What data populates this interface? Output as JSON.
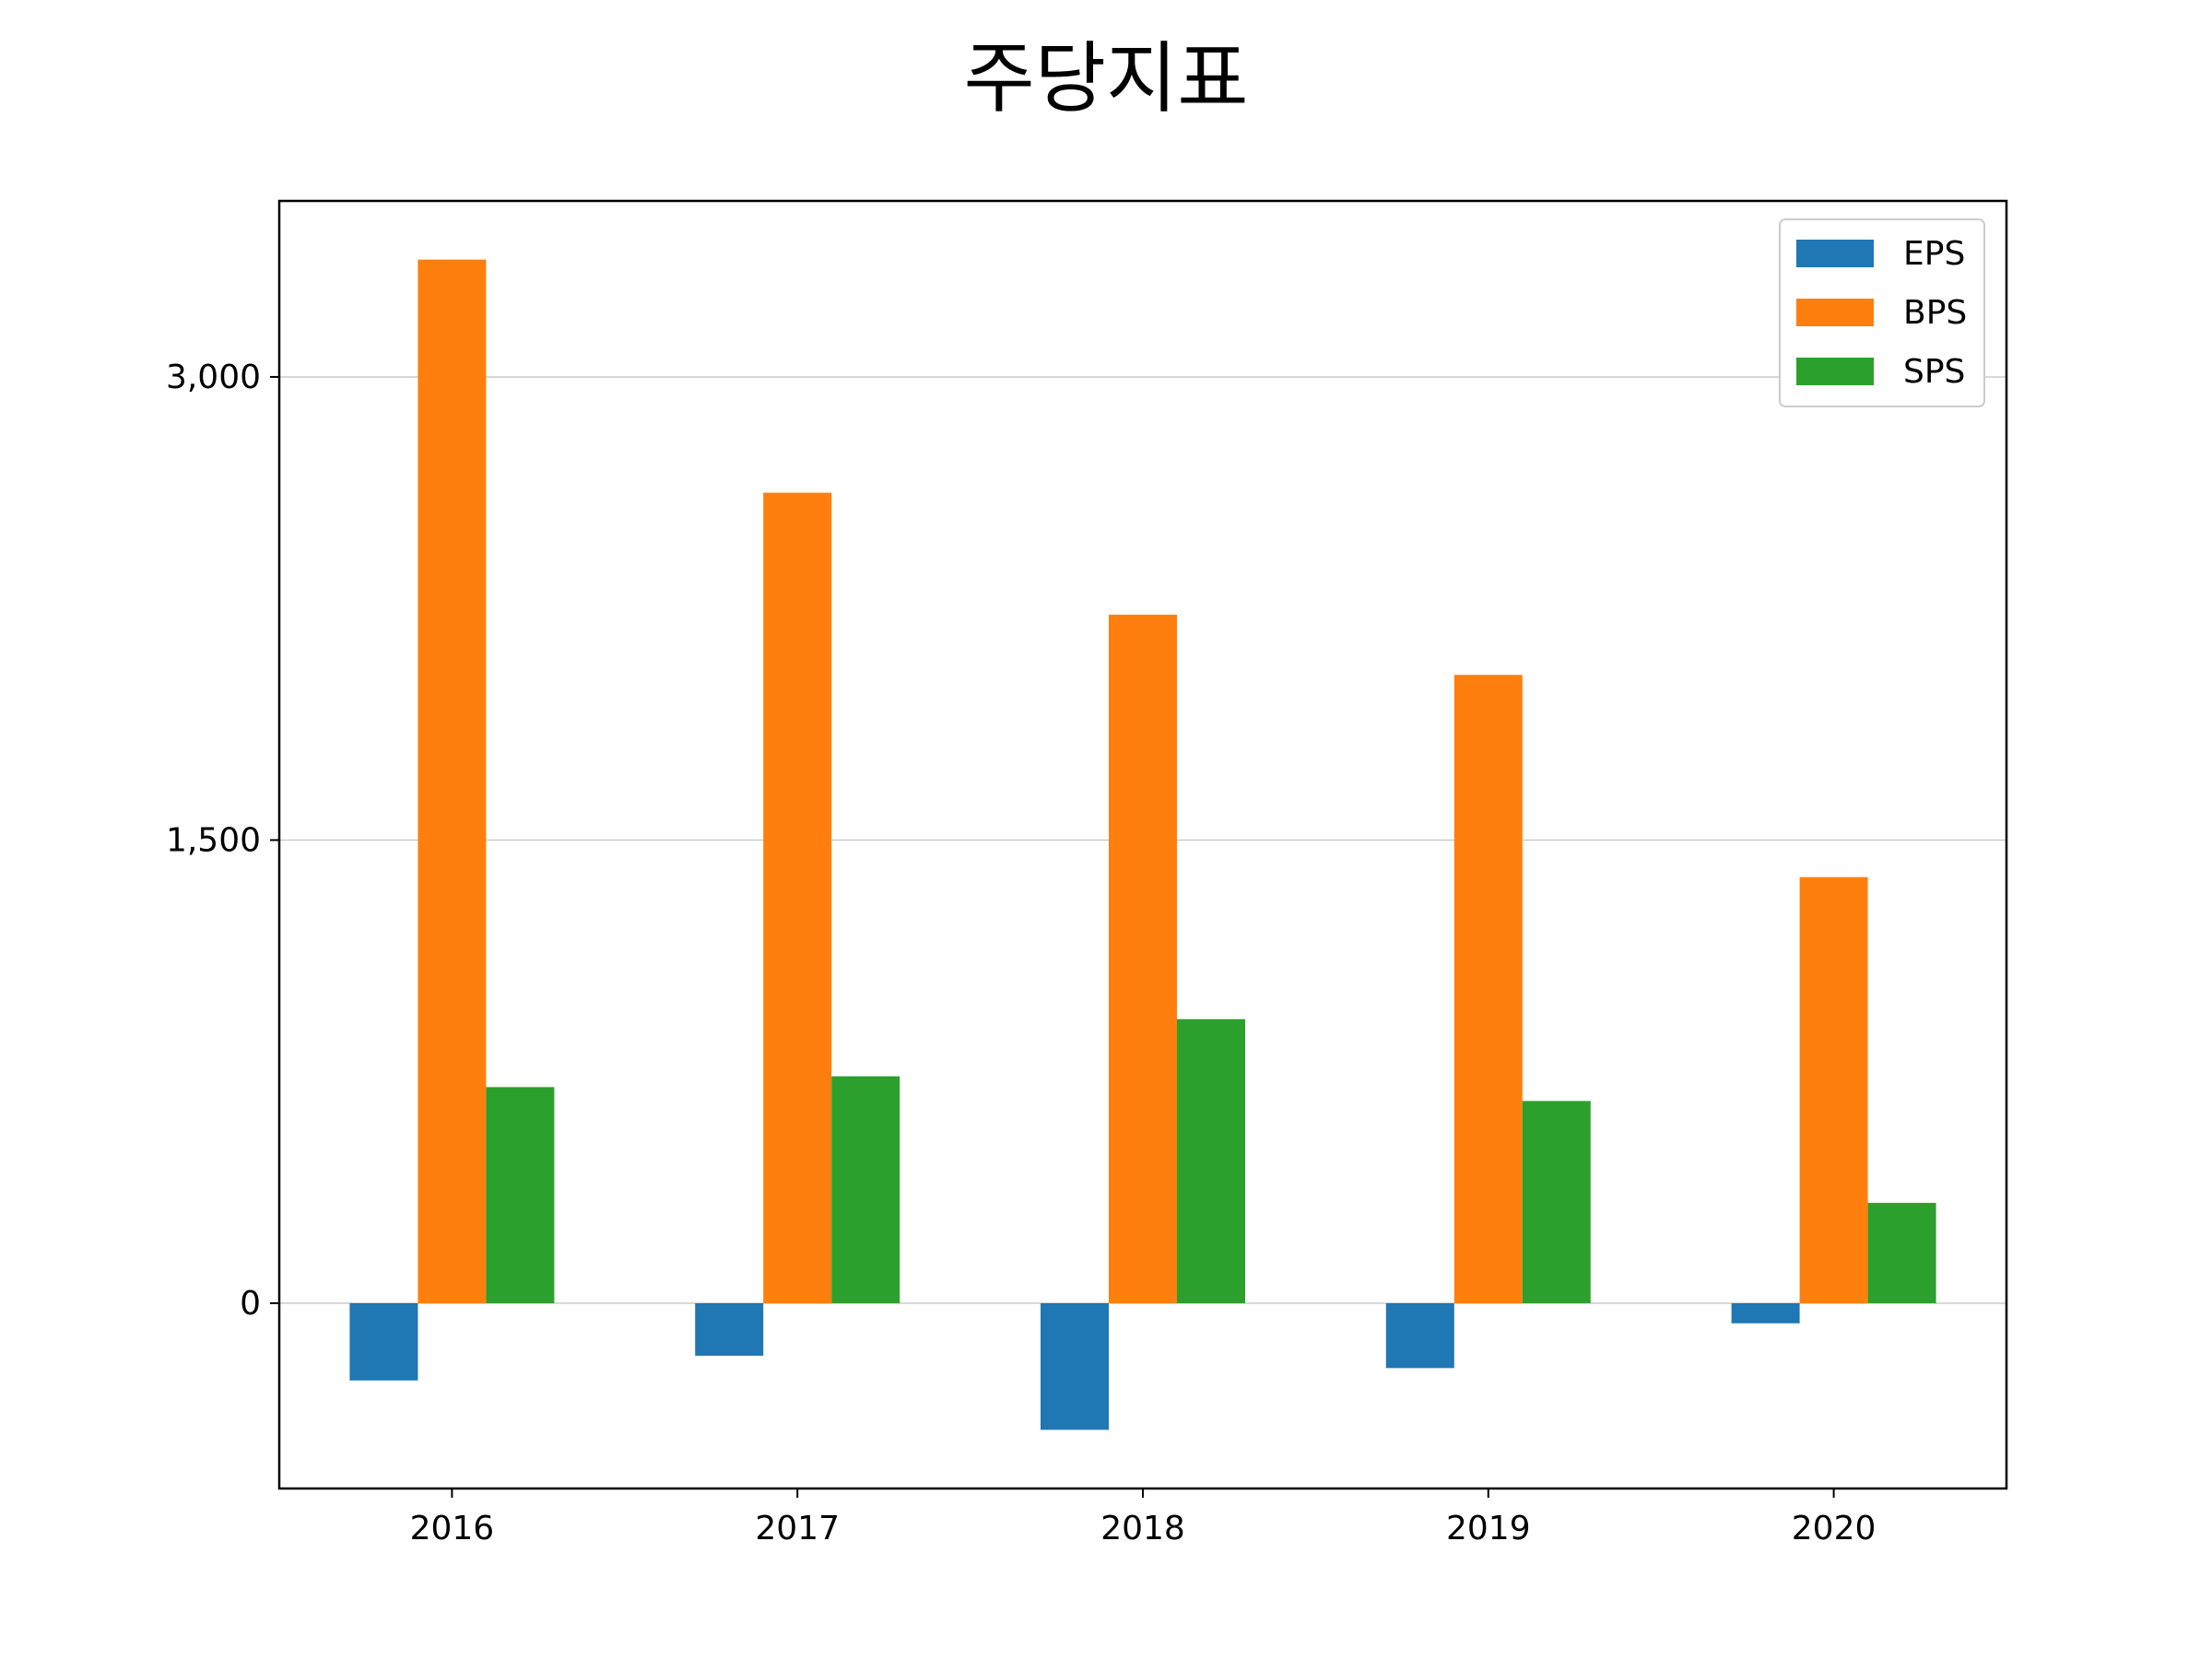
{
  "chart_data": {
    "type": "bar",
    "title": "주당지표",
    "categories": [
      "2016",
      "2017",
      "2018",
      "2019",
      "2020"
    ],
    "series": [
      {
        "name": "EPS",
        "color": "#1f77b4",
        "values": [
          -250,
          -170,
          -410,
          -210,
          -65
        ]
      },
      {
        "name": "BPS",
        "color": "#ff7f0e",
        "values": [
          3380,
          2625,
          2230,
          2035,
          1380
        ]
      },
      {
        "name": "SPS",
        "color": "#2ca02c",
        "values": [
          700,
          735,
          920,
          655,
          325
        ]
      }
    ],
    "yticks": [
      0,
      1500,
      3000
    ],
    "ytick_labels": [
      "0",
      "1,500",
      "3,000"
    ],
    "ylim": [
      -600,
      3570
    ],
    "xlabel": "",
    "ylabel": "",
    "grid": "y",
    "legend_position": "top-right"
  }
}
